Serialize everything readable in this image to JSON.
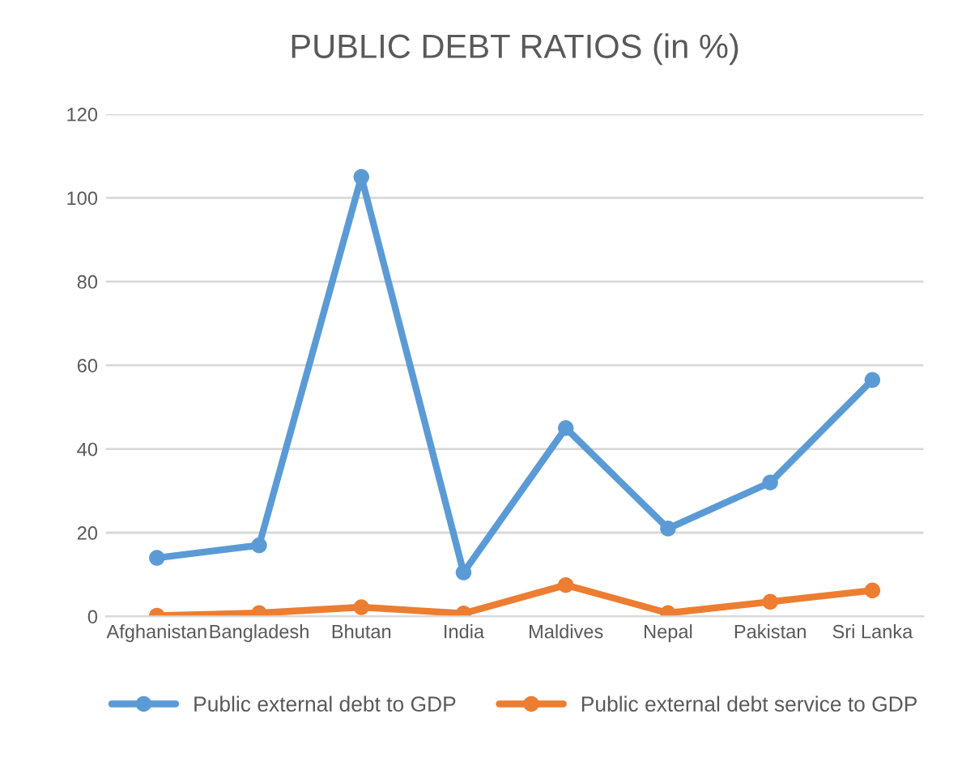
{
  "chart_data": {
    "type": "line",
    "title": "PUBLIC DEBT RATIOS (in %)",
    "categories": [
      "Afghanistan",
      "Bangladesh",
      "Bhutan",
      "India",
      "Maldives",
      "Nepal",
      "Pakistan",
      "Sri Lanka"
    ],
    "series": [
      {
        "name": "Public external debt to GDP",
        "color": "#5b9bd5",
        "values": [
          14,
          17,
          105,
          10.5,
          45,
          21,
          32,
          56.5
        ]
      },
      {
        "name": "Public external debt service to GDP",
        "color": "#ed7d31",
        "values": [
          0.2,
          0.8,
          2.2,
          0.7,
          7.5,
          0.8,
          3.5,
          6.2
        ]
      }
    ],
    "ylim": [
      0,
      120
    ],
    "yticks": [
      0,
      20,
      40,
      60,
      80,
      100,
      120
    ],
    "grid": "y",
    "legend": "bottom",
    "marker": "circle",
    "line_style": "solid"
  }
}
